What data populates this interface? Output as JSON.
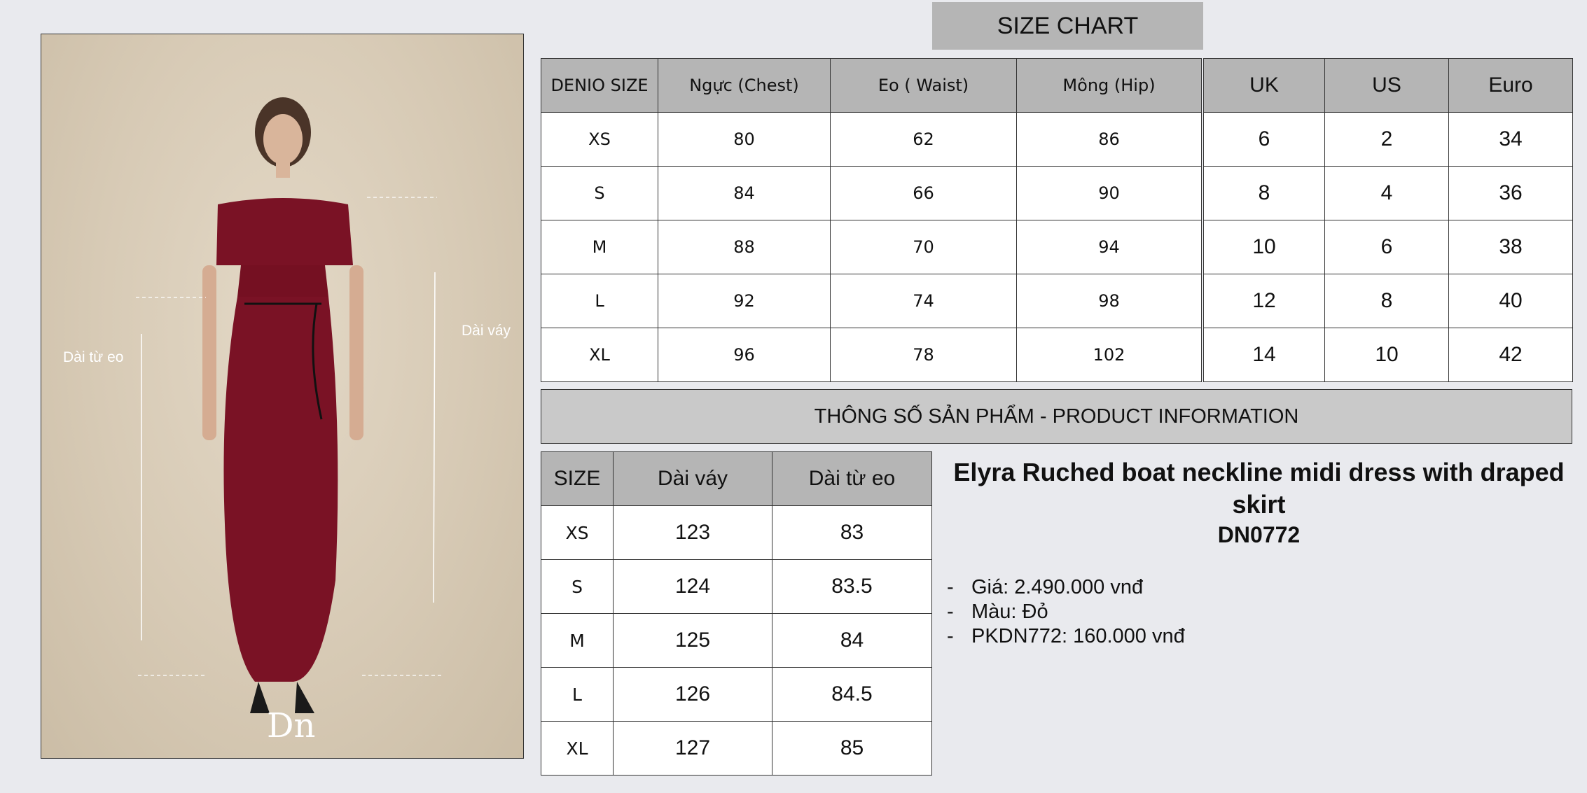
{
  "photo": {
    "label_dress_length": "Dài váy",
    "label_waist_length": "Dài từ eo",
    "logo_text": "DN",
    "dress_color": "#7a1225"
  },
  "size_chart": {
    "title": "SIZE CHART",
    "headers": [
      "DENIO SIZE",
      "Ngực (Chest)",
      "Eo ( Waist)",
      "Mông (Hip)"
    ],
    "rows": [
      [
        "XS",
        "80",
        "62",
        "86"
      ],
      [
        "S",
        "84",
        "66",
        "90"
      ],
      [
        "M",
        "88",
        "70",
        "94"
      ],
      [
        "L",
        "92",
        "74",
        "98"
      ],
      [
        "XL",
        "96",
        "78",
        "102"
      ]
    ]
  },
  "conversion": {
    "headers": [
      "UK",
      "US",
      "Euro"
    ],
    "rows": [
      [
        "6",
        "2",
        "34"
      ],
      [
        "8",
        "4",
        "36"
      ],
      [
        "10",
        "6",
        "38"
      ],
      [
        "12",
        "8",
        "40"
      ],
      [
        "14",
        "10",
        "42"
      ]
    ]
  },
  "product_info": {
    "title": "THÔNG SỐ SẢN PHẨM - PRODUCT INFORMATION",
    "headers": [
      "SIZE",
      "Dài váy",
      "Dài từ eo"
    ],
    "rows": [
      [
        "XS",
        "123",
        "83"
      ],
      [
        "S",
        "124",
        "83.5"
      ],
      [
        "M",
        "125",
        "84"
      ],
      [
        "L",
        "126",
        "84.5"
      ],
      [
        "XL",
        "127",
        "85"
      ]
    ]
  },
  "product": {
    "name": "Elyra Ruched boat neckline midi dress with draped skirt",
    "code": "DN0772",
    "details": [
      "Giá: 2.490.000 vnđ",
      "Màu: Đỏ",
      "PKDN772: 160.000 vnđ"
    ]
  }
}
